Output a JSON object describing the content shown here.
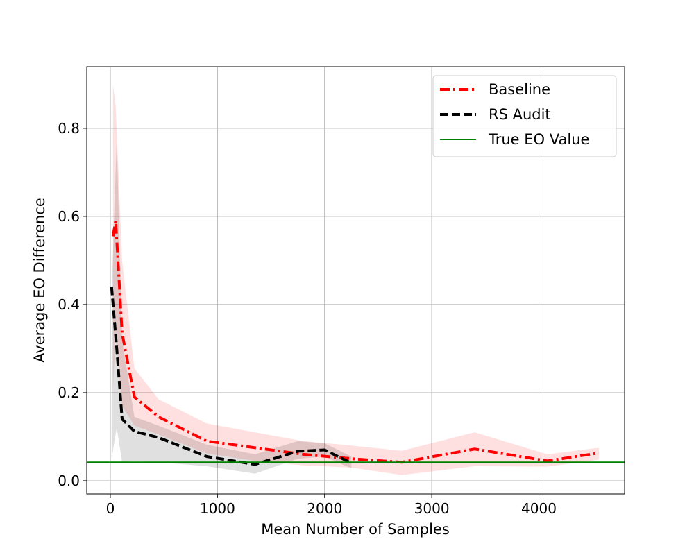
{
  "chart_data": {
    "type": "line",
    "title": "",
    "xlabel": "Mean Number of Samples",
    "ylabel": "Average EO Difference",
    "xlim": [
      -220,
      4800
    ],
    "ylim": [
      -0.03,
      0.94
    ],
    "xticks": [
      0,
      1000,
      2000,
      3000,
      4000
    ],
    "yticks": [
      0.0,
      0.2,
      0.4,
      0.6,
      0.8
    ],
    "xtick_labels": [
      "0",
      "1000",
      "2000",
      "3000",
      "4000"
    ],
    "ytick_labels": [
      "0.0",
      "0.2",
      "0.4",
      "0.6",
      "0.8"
    ],
    "grid": true,
    "legend_position": "top-right",
    "series": [
      {
        "name": "Baseline",
        "color": "#ff0000",
        "style": "dash-dot",
        "x": [
          25,
          50,
          110,
          225,
          450,
          900,
          1350,
          1800,
          2250,
          2720,
          3400,
          4080,
          4560
        ],
        "y": [
          0.555,
          0.59,
          0.335,
          0.19,
          0.145,
          0.09,
          0.075,
          0.06,
          0.05,
          0.042,
          0.072,
          0.045,
          0.063
        ],
        "band_upper": [
          0.9,
          0.85,
          0.5,
          0.255,
          0.185,
          0.13,
          0.11,
          0.09,
          0.08,
          0.068,
          0.11,
          0.06,
          0.075
        ],
        "band_lower": [
          0.21,
          0.33,
          0.17,
          0.125,
          0.105,
          0.062,
          0.045,
          0.035,
          0.03,
          0.013,
          0.033,
          0.032,
          0.048
        ]
      },
      {
        "name": "RS Audit",
        "color": "#000000",
        "style": "dashed",
        "x": [
          12,
          60,
          110,
          225,
          450,
          900,
          1350,
          1750,
          2000,
          2250
        ],
        "y": [
          0.44,
          0.3,
          0.14,
          0.112,
          0.098,
          0.055,
          0.037,
          0.067,
          0.07,
          0.04
        ],
        "band_upper": [
          0.42,
          0.78,
          0.32,
          0.145,
          0.125,
          0.082,
          0.06,
          0.09,
          0.085,
          0.055
        ],
        "band_lower": [
          0.05,
          0.12,
          0.042,
          0.045,
          0.042,
          0.033,
          0.016,
          0.05,
          0.055,
          0.028
        ]
      },
      {
        "name": "True EO Value",
        "color": "#008000",
        "style": "solid",
        "y": 0.042
      }
    ]
  }
}
